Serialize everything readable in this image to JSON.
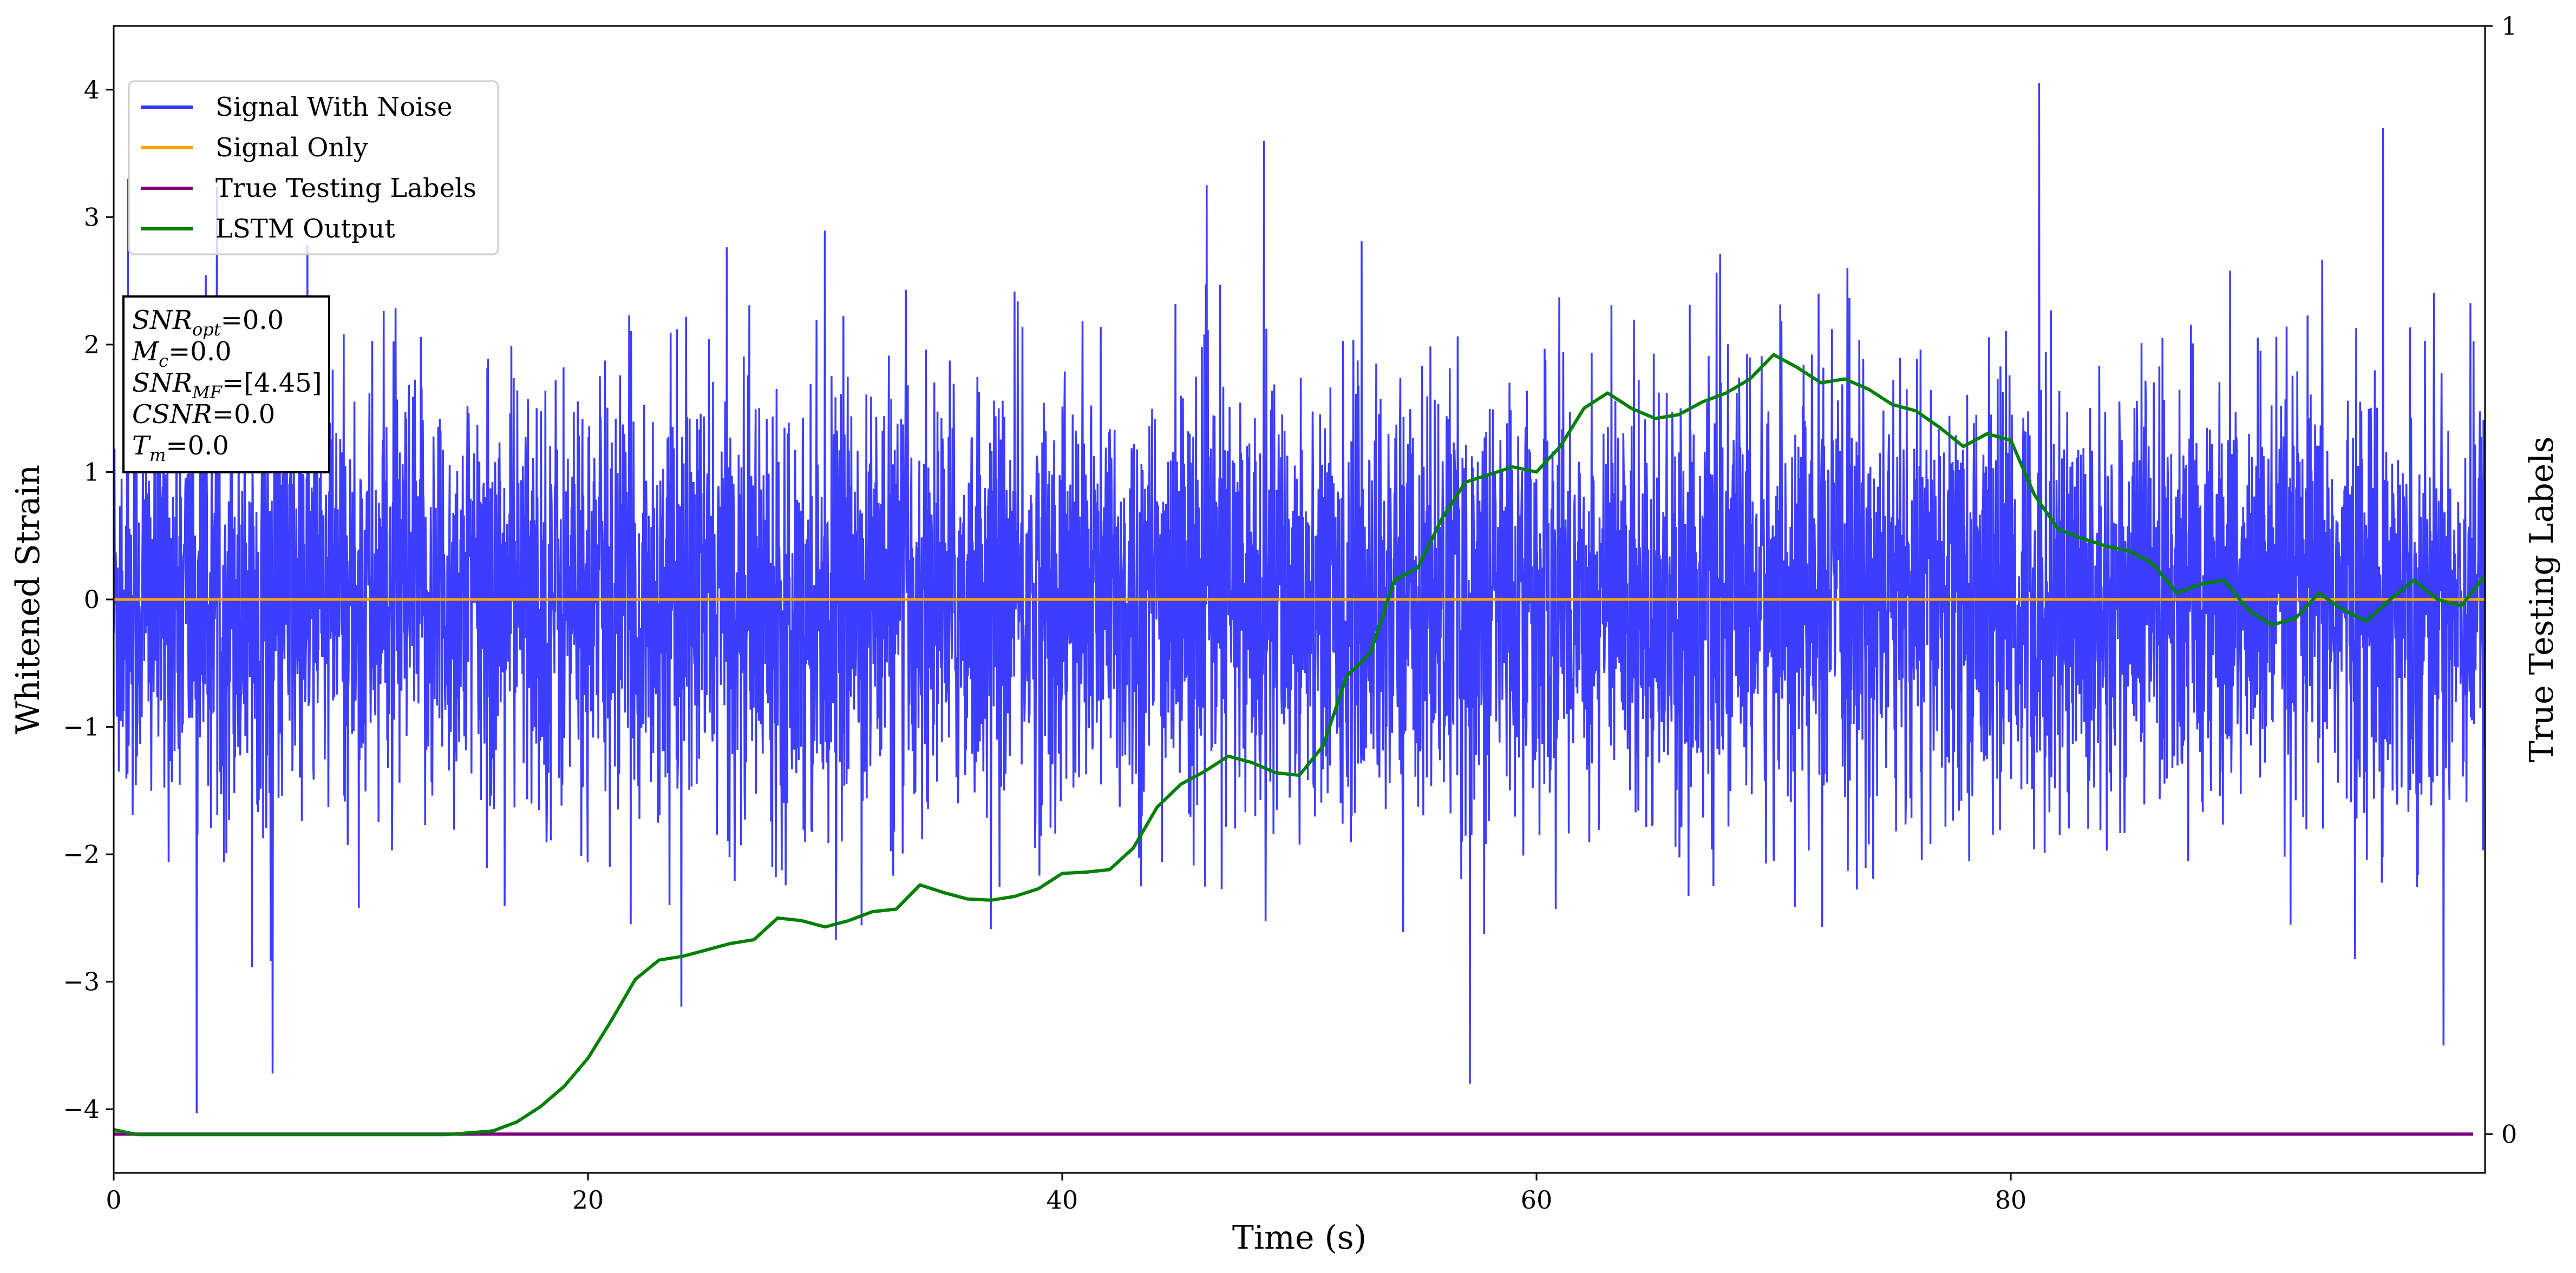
{
  "chart_data": {
    "type": "line",
    "title": "",
    "xlabel": "Time (s)",
    "ylabel": "Whitened Strain",
    "y2label": "True Testing Labels",
    "xlim": [
      0,
      100
    ],
    "ylim": [
      -4.5,
      4.5
    ],
    "y2lim": [
      -0.035,
      1.0
    ],
    "x_ticks": [
      0,
      20,
      40,
      60,
      80
    ],
    "x_tick_labels": [
      "0",
      "20",
      "40",
      "60",
      "80"
    ],
    "y_ticks": [
      -4,
      -3,
      -2,
      -1,
      0,
      1,
      2,
      3,
      4
    ],
    "y_tick_labels": [
      "−4",
      "−3",
      "−2",
      "−1",
      "0",
      "1",
      "2",
      "3",
      "4"
    ],
    "y2_ticks": [
      0,
      1
    ],
    "y2_tick_labels": [
      "0",
      "1"
    ],
    "grid": false,
    "legend_position": "top-left",
    "series": [
      {
        "name": "Signal With Noise",
        "axis": "left",
        "color": "#3333ff",
        "style": "dense noise, sd ≈ 0.8, occasional spikes",
        "notable_values": [
          [
            0.6,
            3.3
          ],
          [
            3.5,
            -4.03
          ],
          [
            6.7,
            -3.72
          ],
          [
            48.5,
            3.6
          ],
          [
            57.2,
            -3.8
          ],
          [
            81.2,
            4.05
          ],
          [
            95.7,
            3.7
          ]
        ]
      },
      {
        "name": "Signal Only",
        "axis": "left",
        "color": "#ffa500",
        "x": [
          0,
          100
        ],
        "y": [
          0,
          0
        ]
      },
      {
        "name": "True Testing Labels",
        "axis": "right",
        "color": "#800080",
        "x": [
          0,
          99.5
        ],
        "y": [
          0,
          0
        ]
      },
      {
        "name": "LSTM Output",
        "axis": "left",
        "color": "#008000",
        "x": [
          0,
          1,
          2,
          5,
          10,
          14,
          16,
          17,
          18,
          19,
          20,
          21,
          22,
          23,
          24,
          25,
          26,
          27,
          28,
          29,
          30,
          31,
          32,
          33,
          34,
          35,
          36,
          37,
          38,
          39,
          40,
          41,
          42,
          43,
          44,
          45,
          46,
          47,
          48,
          49,
          50,
          51,
          52,
          53,
          54,
          55,
          56,
          57,
          58,
          59,
          60,
          61,
          62,
          63,
          64,
          65,
          66,
          67,
          68,
          69,
          70,
          71,
          72,
          73,
          74,
          75,
          76,
          77,
          78,
          79,
          80,
          81,
          82,
          83,
          84,
          85,
          86,
          87,
          88,
          89,
          90,
          91,
          92,
          93,
          94,
          95,
          96,
          97,
          98,
          99,
          100
        ],
        "y": [
          -4.16,
          -4.2,
          -4.2,
          -4.2,
          -4.2,
          -4.2,
          -4.17,
          -4.1,
          -3.98,
          -3.82,
          -3.6,
          -3.3,
          -2.98,
          -2.83,
          -2.8,
          -2.75,
          -2.7,
          -2.67,
          -2.5,
          -2.52,
          -2.57,
          -2.52,
          -2.45,
          -2.43,
          -2.24,
          -2.3,
          -2.35,
          -2.36,
          -2.33,
          -2.27,
          -2.15,
          -2.14,
          -2.12,
          -1.95,
          -1.63,
          -1.45,
          -1.35,
          -1.23,
          -1.28,
          -1.36,
          -1.38,
          -1.15,
          -0.6,
          -0.42,
          0.15,
          0.25,
          0.63,
          0.92,
          0.98,
          1.04,
          1.0,
          1.2,
          1.5,
          1.62,
          1.5,
          1.42,
          1.45,
          1.55,
          1.62,
          1.73,
          1.92,
          1.82,
          1.7,
          1.73,
          1.65,
          1.53,
          1.48,
          1.35,
          1.2,
          1.3,
          1.25,
          0.82,
          0.55,
          0.48,
          0.42,
          0.38,
          0.28,
          0.05,
          0.12,
          0.15,
          -0.08,
          -0.2,
          -0.15,
          0.05,
          -0.08,
          -0.17,
          0.0,
          0.15,
          0.0,
          -0.05,
          0.19
        ]
      }
    ],
    "annotation_lines": [
      {
        "main": "SNR",
        "sub": "opt",
        "value": "=0.0"
      },
      {
        "main": "M",
        "sub": "c",
        "value": "=0.0"
      },
      {
        "main": "SNR",
        "sub": "MF",
        "value": "=[4.45]"
      },
      {
        "main": "CSNR",
        "sub": "",
        "value": "=0.0"
      },
      {
        "main": "T",
        "sub": "m",
        "value": "=0.0"
      }
    ]
  },
  "colors": {
    "axis": "#000000",
    "background": "#ffffff"
  }
}
